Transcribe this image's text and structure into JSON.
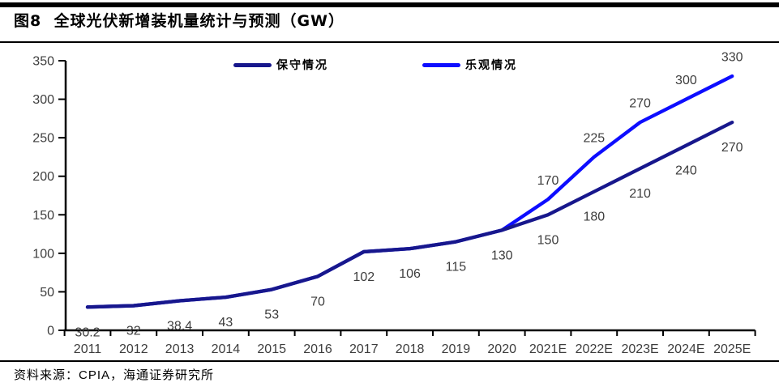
{
  "chart_data": {
    "type": "line",
    "title": "图8  全球光伏新增装机量统计与预测（GW）",
    "categories": [
      "2011",
      "2012",
      "2013",
      "2014",
      "2015",
      "2016",
      "2017",
      "2018",
      "2019",
      "2020",
      "2021E",
      "2022E",
      "2023E",
      "2024E",
      "2025E"
    ],
    "series": [
      {
        "name": "保守情况",
        "color": "#17178C",
        "values": [
          30.2,
          32,
          38.4,
          43,
          53,
          70,
          102,
          106,
          115,
          130,
          150,
          180,
          210,
          240,
          270
        ],
        "label_side": "below",
        "labels_from": 0
      },
      {
        "name": "乐观情况",
        "color": "#0D0DFF",
        "values": [
          30.2,
          32,
          38.4,
          43,
          53,
          70,
          102,
          106,
          115,
          130,
          170,
          225,
          270,
          300,
          330
        ],
        "label_side": "above",
        "labels_from": 10
      }
    ],
    "ylim": [
      0,
      350
    ],
    "yticks": [
      0,
      50,
      100,
      150,
      200,
      250,
      300,
      350
    ],
    "xlabel": "",
    "ylabel": "",
    "grid": false,
    "legend_position": "top-inside",
    "axis_text_color": "#3D3D3D"
  },
  "footer": {
    "source": "资料来源：CPIA，海通证券研究所"
  }
}
